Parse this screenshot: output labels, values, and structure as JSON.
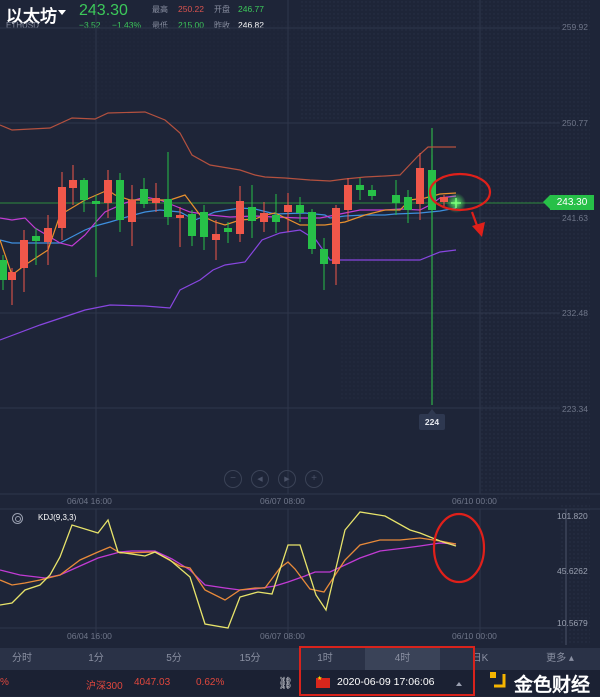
{
  "header": {
    "title": "以太坊",
    "symbol": "ETHUSD",
    "price": "243.30",
    "change": "−3.52",
    "change_pct": "−1.43%",
    "stats": [
      {
        "label": "最高",
        "value": "250.22",
        "color": "#d9534f"
      },
      {
        "label": "开盘",
        "value": "246.77",
        "color": "#3cc85a"
      },
      {
        "label": "最低",
        "value": "215.00",
        "color": "#3cc85a"
      },
      {
        "label": "昨收",
        "value": "246.82",
        "color": "#ffffff"
      }
    ]
  },
  "main_chart": {
    "y_axis": [
      "259.92",
      "250.77",
      "241.63",
      "232.48",
      "223.34"
    ],
    "current_price_tag": "243.30",
    "low_marker": "224",
    "x_axis": [
      "06/04 16:00",
      "06/07 08:00",
      "06/10 00:00"
    ],
    "nav_buttons": [
      "zoom-out",
      "step-back",
      "step-forward",
      "zoom-in"
    ]
  },
  "indicator": {
    "name": "KDJ(9,3,3)",
    "y_axis": [
      "101.820",
      "45.6262",
      "10.5679"
    ],
    "x_axis": [
      "06/04 16:00",
      "06/07 08:00",
      "06/10 00:00"
    ]
  },
  "tabs": [
    {
      "label": "分时",
      "active": false
    },
    {
      "label": "1分",
      "active": false
    },
    {
      "label": "5分",
      "active": false
    },
    {
      "label": "15分",
      "active": false
    },
    {
      "label": "1时",
      "active": false
    },
    {
      "label": "4时",
      "active": true
    },
    {
      "label": "日K",
      "active": false
    },
    {
      "label": "更多 ▴",
      "active": false
    }
  ],
  "ticker": {
    "prev_fragment": "%",
    "name": "沪深300",
    "value": "4047.03",
    "pct": "0.62%",
    "datetime": "2020-06-09 17:06:06"
  },
  "watermark": {
    "text": "金色财经"
  },
  "colors": {
    "up": "#f0574a",
    "down": "#27c048",
    "background": "#1e2538",
    "annotation": "#e0201a"
  },
  "chart_data": [
    {
      "type": "candlestick",
      "title": "以太坊 ETHUSD 4时",
      "ylim": [
        219,
        262
      ],
      "y_ticks": [
        259.92,
        250.77,
        241.63,
        232.48,
        223.34
      ],
      "x_ticks": [
        "06/04 16:00",
        "06/07 08:00",
        "06/10 00:00"
      ],
      "overlays": [
        "BOLL upper",
        "BOLL lower",
        "MA fast (orange)",
        "MA mid (magenta)",
        "MA slow (blue)"
      ],
      "current_price": 243.3,
      "marked_low": 224
    },
    {
      "type": "line",
      "title": "KDJ(9,3,3)",
      "ylim": [
        10.5679,
        101.82
      ],
      "y_ticks": [
        101.82,
        45.6262,
        10.5679
      ],
      "series": [
        {
          "name": "K",
          "color": "#e88a3a"
        },
        {
          "name": "D",
          "color": "#c23bd4"
        },
        {
          "name": "J",
          "color": "#e7e36a"
        }
      ]
    }
  ]
}
